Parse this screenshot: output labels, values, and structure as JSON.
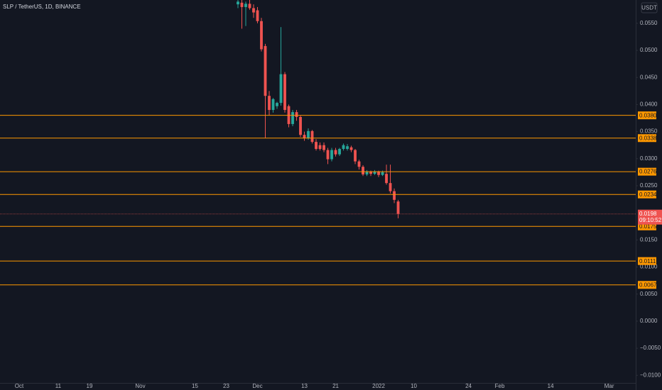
{
  "chart_data": {
    "type": "candlestick",
    "title": "SLP / TetherUS, 1D, BINANCE",
    "y_axis_unit": "USDT",
    "up_color": "#26a69a",
    "down_color": "#ef5350",
    "level_color": "#ff9800",
    "xlim": [
      -4.9,
      157.8
    ],
    "ylim": [
      -0.0114,
      0.0593
    ],
    "xticks": [
      {
        "value": 0,
        "label": "Oct"
      },
      {
        "value": 10,
        "label": "11"
      },
      {
        "value": 18,
        "label": "19"
      },
      {
        "value": 31,
        "label": "Nov"
      },
      {
        "value": 45,
        "label": "15"
      },
      {
        "value": 53,
        "label": "23"
      },
      {
        "value": 61,
        "label": "Dec"
      },
      {
        "value": 73,
        "label": "13"
      },
      {
        "value": 81,
        "label": "21"
      },
      {
        "value": 92,
        "label": "2022"
      },
      {
        "value": 101,
        "label": "10"
      },
      {
        "value": 115,
        "label": "24"
      },
      {
        "value": 123,
        "label": "Feb"
      },
      {
        "value": 136,
        "label": "14"
      },
      {
        "value": 151,
        "label": "Mar"
      }
    ],
    "yticks": [
      {
        "value": 0.055,
        "label": "0.0550"
      },
      {
        "value": 0.05,
        "label": "0.0500"
      },
      {
        "value": 0.045,
        "label": "0.0450"
      },
      {
        "value": 0.04,
        "label": "0.0400"
      },
      {
        "value": 0.035,
        "label": "0.0350"
      },
      {
        "value": 0.03,
        "label": "0.0300"
      },
      {
        "value": 0.025,
        "label": "0.0250"
      },
      {
        "value": 0.015,
        "label": "0.0150"
      },
      {
        "value": 0.01,
        "label": "0.0100"
      },
      {
        "value": 0.005,
        "label": "0.0050"
      },
      {
        "value": 0,
        "label": "0.0000"
      },
      {
        "value": -0.005,
        "label": "−0.0050"
      },
      {
        "value": -0.01,
        "label": "−0.0100"
      }
    ],
    "x": [
      56,
      57,
      58,
      59,
      60,
      61,
      62,
      63,
      64,
      65,
      66,
      67,
      68,
      69,
      70,
      71,
      72,
      73,
      74,
      75,
      76,
      77,
      78,
      79,
      80,
      81,
      82,
      83,
      84,
      85,
      86,
      87,
      88,
      89,
      90,
      91,
      92,
      93,
      94,
      95,
      96,
      97
    ],
    "open": [
      0.0585,
      0.0588,
      0.058,
      0.0586,
      0.0578,
      0.0574,
      0.0554,
      0.0508,
      0.0416,
      0.039,
      0.0397,
      0.0403,
      0.0456,
      0.0397,
      0.0364,
      0.0386,
      0.0377,
      0.0344,
      0.0338,
      0.0351,
      0.0331,
      0.0325,
      0.0325,
      0.0316,
      0.0299,
      0.0316,
      0.0308,
      0.0318,
      0.0318,
      0.0321,
      0.0316,
      0.0295,
      0.0285,
      0.0271,
      0.0276,
      0.0272,
      0.0276,
      0.027,
      0.0272,
      0.0255,
      0.024,
      0.0221
    ],
    "high": [
      0.0593,
      0.0593,
      0.059,
      0.0593,
      0.0585,
      0.058,
      0.056,
      0.0512,
      0.0425,
      0.0412,
      0.0405,
      0.0543,
      0.046,
      0.04,
      0.039,
      0.039,
      0.038,
      0.035,
      0.0356,
      0.0353,
      0.0336,
      0.033,
      0.033,
      0.032,
      0.032,
      0.032,
      0.032,
      0.0328,
      0.0327,
      0.0324,
      0.0318,
      0.0298,
      0.0288,
      0.0279,
      0.0278,
      0.0279,
      0.0278,
      0.0278,
      0.0289,
      0.0289,
      0.0245,
      0.0224
    ],
    "low": [
      0.0578,
      0.054,
      0.0545,
      0.0575,
      0.056,
      0.055,
      0.0498,
      0.0338,
      0.038,
      0.0385,
      0.0392,
      0.0398,
      0.0385,
      0.0358,
      0.036,
      0.037,
      0.034,
      0.0333,
      0.0335,
      0.0328,
      0.0315,
      0.0315,
      0.0312,
      0.029,
      0.0295,
      0.0304,
      0.0305,
      0.0315,
      0.0315,
      0.0312,
      0.029,
      0.028,
      0.0268,
      0.0268,
      0.0268,
      0.027,
      0.0266,
      0.0268,
      0.0252,
      0.0236,
      0.0218,
      0.019
    ],
    "close": [
      0.059,
      0.058,
      0.0586,
      0.0578,
      0.057,
      0.0554,
      0.0502,
      0.0416,
      0.039,
      0.041,
      0.0403,
      0.0456,
      0.039,
      0.0364,
      0.0386,
      0.0377,
      0.0344,
      0.0338,
      0.0351,
      0.0331,
      0.0318,
      0.0318,
      0.0316,
      0.0299,
      0.0316,
      0.0308,
      0.0318,
      0.0325,
      0.0323,
      0.0316,
      0.0295,
      0.0285,
      0.0271,
      0.0276,
      0.0272,
      0.0276,
      0.027,
      0.0275,
      0.0255,
      0.024,
      0.0224,
      0.0198
    ],
    "levels": [
      {
        "value": 0.038,
        "label": "0.0380"
      },
      {
        "value": 0.0338,
        "label": "0.0338"
      },
      {
        "value": 0.0276,
        "label": "0.0276"
      },
      {
        "value": 0.0234,
        "label": "0.0234"
      },
      {
        "value": 0.0175,
        "label": "0.0175"
      },
      {
        "value": 0.0111,
        "label": "0.0111"
      },
      {
        "value": 0.0067,
        "label": "0.0067"
      }
    ],
    "last_price": {
      "value": 0.0198,
      "label": "0.0198",
      "countdown": "09:10:52"
    }
  }
}
